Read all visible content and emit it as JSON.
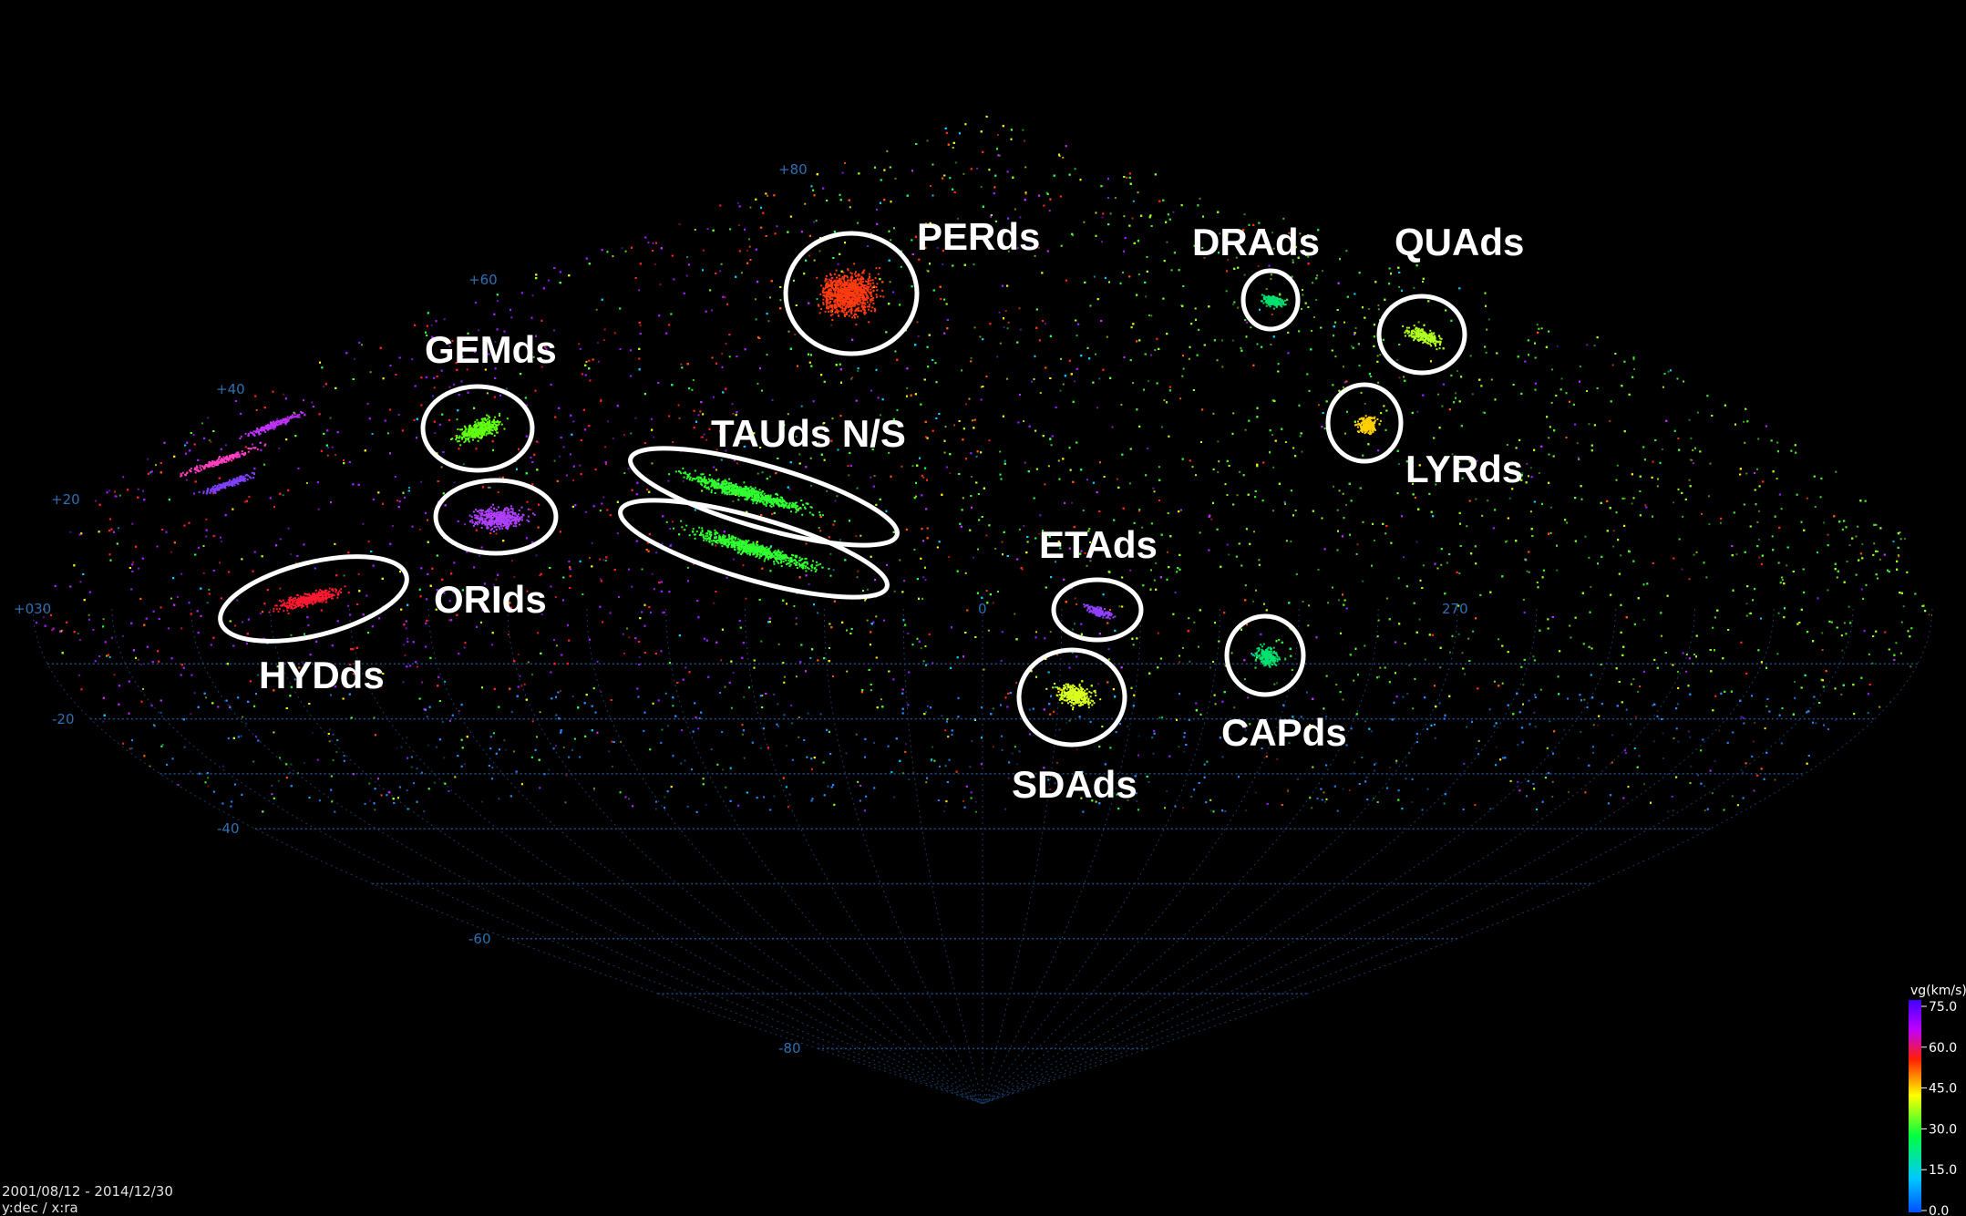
{
  "chart_data": {
    "type": "scatter",
    "projection": "sinusoidal all-sky (dec vs ra)",
    "grid": true,
    "dec_ticks": [
      "+80",
      "+60",
      "+40",
      "+20",
      "+030",
      "-20",
      "-40",
      "-60",
      "-80"
    ],
    "ra_ticks": [
      "0",
      "270"
    ],
    "colorbar": {
      "title": "vg(km/s)",
      "ticks": [
        "75.0",
        "60.0",
        "45.0",
        "30.0",
        "15.0",
        "0.0"
      ],
      "range": [
        0,
        75
      ],
      "colors": [
        "#0050ff",
        "#00c8ff",
        "#00ff40",
        "#ffff00",
        "#ff2000",
        "#c000ff",
        "#4000ff"
      ]
    },
    "footer": {
      "date_range": "2001/08/12 - 2014/12/30",
      "axes": "y:dec / x:ra"
    },
    "showers": [
      {
        "name": "PERds",
        "vg": 57,
        "color": "#ff3a10"
      },
      {
        "name": "DRAds",
        "vg": 22,
        "color": "#00e070"
      },
      {
        "name": "QUAds",
        "vg": 38,
        "color": "#b0ff20"
      },
      {
        "name": "GEMds",
        "vg": 34,
        "color": "#60ff10"
      },
      {
        "name": "TAUds N/S",
        "vg": 28,
        "color": "#30ff30"
      },
      {
        "name": "LYRds",
        "vg": 45,
        "color": "#ffd000"
      },
      {
        "name": "ORIds",
        "vg": 64,
        "color": "#b040ff"
      },
      {
        "name": "ETAds",
        "vg": 65,
        "color": "#9040ff"
      },
      {
        "name": "HYDds",
        "vg": 58,
        "color": "#ff1a30"
      },
      {
        "name": "CAPds",
        "vg": 23,
        "color": "#00e070"
      },
      {
        "name": "SDAds",
        "vg": 40,
        "color": "#d8ff20"
      }
    ]
  }
}
